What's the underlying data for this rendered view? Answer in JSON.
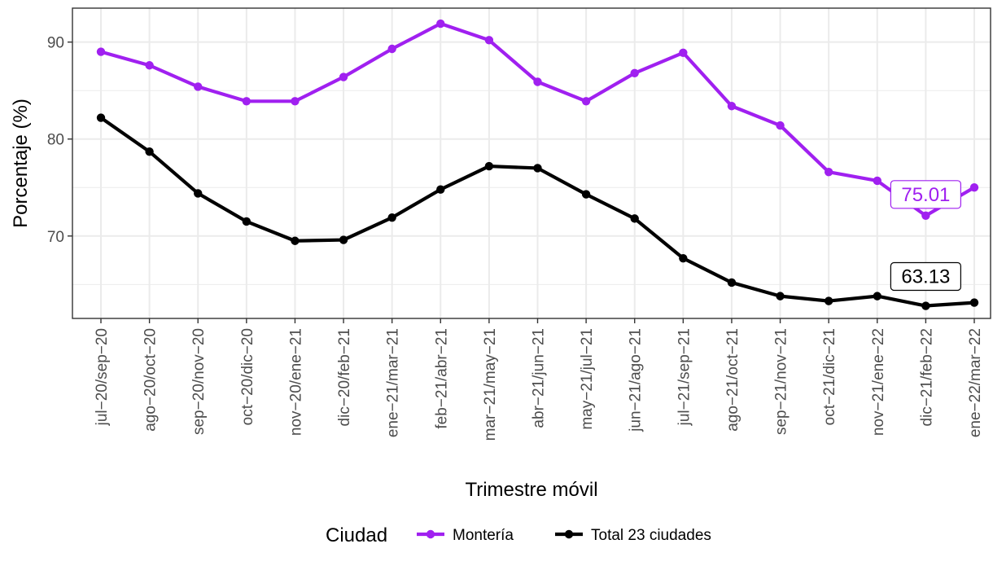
{
  "chart_data": {
    "type": "line",
    "xlabel": "Trimestre móvil",
    "ylabel": "Porcentaje (%)",
    "ylim": [
      61.5,
      93.5
    ],
    "yticks": [
      70,
      80,
      90
    ],
    "grid": true,
    "legend_position": "bottom",
    "legend_title": "Ciudad",
    "categories": [
      "jul−20/sep−20",
      "ago−20/oct−20",
      "sep−20/nov−20",
      "oct−20/dic−20",
      "nov−20/ene−21",
      "dic−20/feb−21",
      "ene−21/mar−21",
      "feb−21/abr−21",
      "mar−21/may−21",
      "abr−21/jun−21",
      "may−21/jul−21",
      "jun−21/ago−21",
      "jul−21/sep−21",
      "ago−21/oct−21",
      "sep−21/nov−21",
      "oct−21/dic−21",
      "nov−21/ene−22",
      "dic−21/feb−22",
      "ene−22/mar−22"
    ],
    "series": [
      {
        "name": "Montería",
        "color": "#a020f0",
        "values": [
          89.0,
          87.6,
          85.4,
          83.9,
          83.9,
          86.4,
          89.3,
          91.9,
          90.2,
          85.9,
          83.9,
          86.8,
          88.9,
          83.4,
          81.4,
          76.6,
          75.7,
          72.1,
          75.01
        ],
        "end_label": "75.01"
      },
      {
        "name": "Total 23 ciudades",
        "color": "#000000",
        "values": [
          82.2,
          78.7,
          74.4,
          71.5,
          69.5,
          69.6,
          71.9,
          74.8,
          77.2,
          77.0,
          74.3,
          71.8,
          67.7,
          65.2,
          63.8,
          63.3,
          63.8,
          62.8,
          63.13
        ],
        "end_label": "63.13"
      }
    ]
  }
}
